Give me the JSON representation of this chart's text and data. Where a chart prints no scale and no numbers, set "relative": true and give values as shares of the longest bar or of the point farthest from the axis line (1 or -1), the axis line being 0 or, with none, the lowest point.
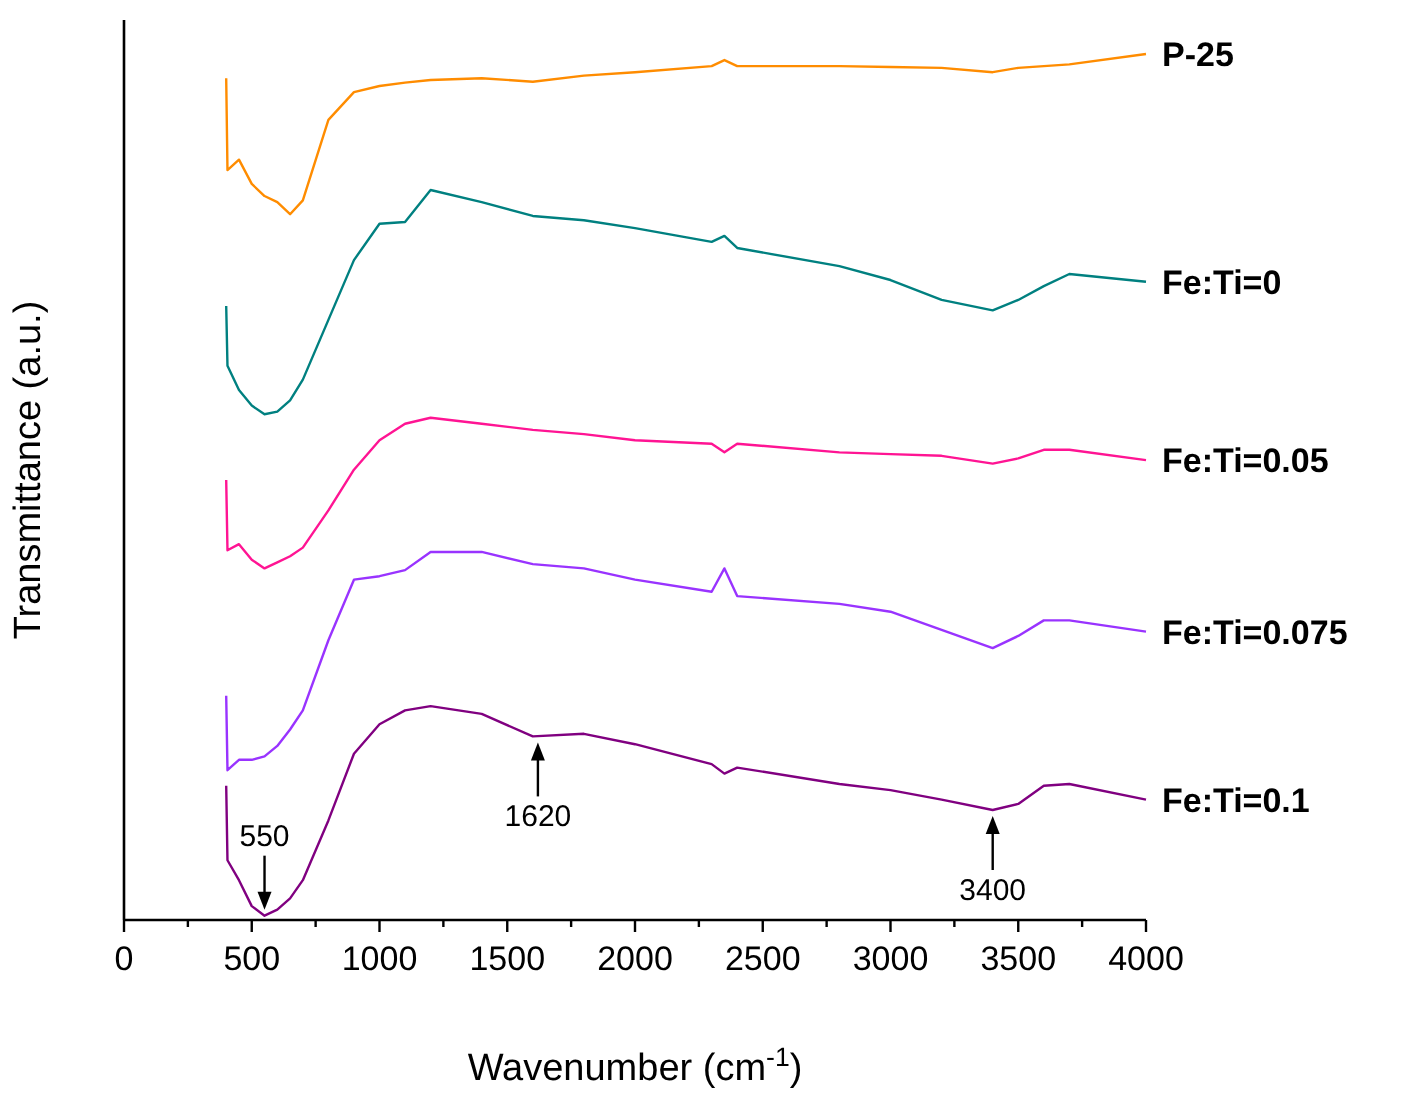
{
  "chart_data": {
    "type": "line",
    "relative": true,
    "xlabel": "Wavenumber (cm$^{-1}$)",
    "ylabel": "Transmittance (a.u.)",
    "xlim": [
      0,
      4000
    ],
    "xticks": [
      0,
      {
        "value": 250,
        "label": null
      },
      500,
      {
        "value": 750,
        "label": null
      },
      1000,
      {
        "value": 1250,
        "label": null
      },
      1500,
      {
        "value": 1750,
        "label": null
      },
      2000,
      {
        "value": 2250,
        "label": null
      },
      2500,
      {
        "value": 2750,
        "label": null
      },
      3000,
      {
        "value": 3250,
        "label": null
      },
      3500,
      {
        "value": 3750,
        "label": null
      },
      4000
    ],
    "x": [
      400,
      405,
      450,
      500,
      550,
      600,
      650,
      700,
      800,
      900,
      1000,
      1100,
      1200,
      1400,
      1600,
      1800,
      2000,
      2300,
      2350,
      2400,
      2800,
      3000,
      3200,
      3400,
      3500,
      3600,
      3700,
      4000
    ],
    "series": [
      {
        "name": "P-25",
        "color": "#ff8c00",
        "values": [
          0.972,
          0.866,
          0.878,
          0.85,
          0.836,
          0.829,
          0.815,
          0.831,
          0.924,
          0.956,
          0.963,
          0.967,
          0.97,
          0.972,
          0.968,
          0.975,
          0.979,
          0.986,
          0.993,
          0.986,
          0.986,
          0.985,
          0.984,
          0.979,
          0.984,
          0.986,
          0.988,
          1
        ]
      },
      {
        "name": "Fe:Ti=0",
        "color": "#008080",
        "values": [
          0.709,
          0.64,
          0.612,
          0.594,
          0.584,
          0.587,
          0.6,
          0.624,
          0.693,
          0.762,
          0.804,
          0.806,
          0.843,
          0.829,
          0.813,
          0.808,
          0.799,
          0.783,
          0.79,
          0.776,
          0.755,
          0.739,
          0.716,
          0.704,
          0.716,
          0.732,
          0.746,
          0.737
        ]
      },
      {
        "name": "Fe:Ti=0.05",
        "color": "#ff1493",
        "values": [
          0.508,
          0.427,
          0.434,
          0.416,
          0.406,
          0.413,
          0.42,
          0.43,
          0.473,
          0.52,
          0.554,
          0.573,
          0.58,
          0.573,
          0.566,
          0.561,
          0.554,
          0.55,
          0.54,
          0.55,
          0.54,
          0.538,
          0.536,
          0.527,
          0.533,
          0.543,
          0.543,
          0.531
        ]
      },
      {
        "name": "Fe:Ti=0.075",
        "color": "#9933ff",
        "values": [
          0.259,
          0.173,
          0.185,
          0.185,
          0.189,
          0.201,
          0.22,
          0.242,
          0.323,
          0.393,
          0.397,
          0.404,
          0.425,
          0.425,
          0.411,
          0.406,
          0.393,
          0.379,
          0.406,
          0.374,
          0.365,
          0.356,
          0.335,
          0.314,
          0.328,
          0.346,
          0.346,
          0.333
        ]
      },
      {
        "name": "Fe:Ti=0.1",
        "color": "#800080",
        "values": [
          0.155,
          0.069,
          0.046,
          0.016,
          0.005,
          0.012,
          0.025,
          0.046,
          0.115,
          0.192,
          0.226,
          0.242,
          0.247,
          0.238,
          0.212,
          0.215,
          0.203,
          0.18,
          0.169,
          0.176,
          0.157,
          0.15,
          0.139,
          0.127,
          0.134,
          0.155,
          0.157,
          0.139
        ]
      }
    ],
    "annotations": [
      {
        "text": "550",
        "x": 550,
        "y": 0.005
      },
      {
        "text": "1620",
        "x": 1620,
        "y": 0.212
      },
      {
        "text": "3400",
        "x": 3400,
        "y": 0.127
      }
    ]
  }
}
